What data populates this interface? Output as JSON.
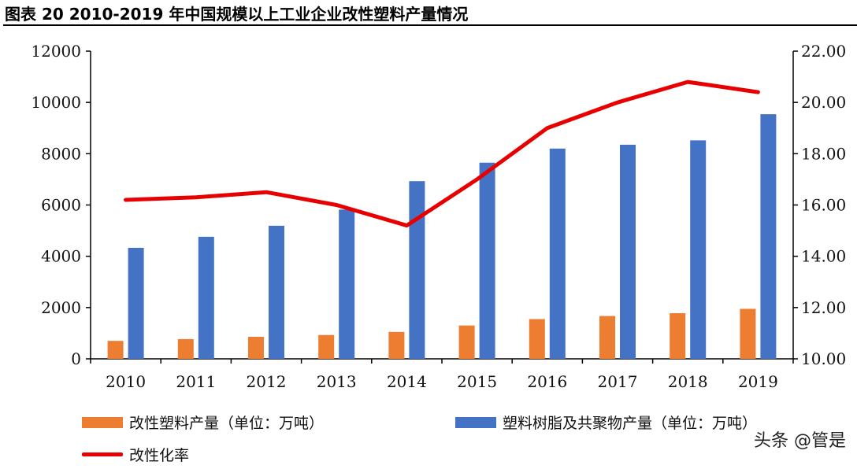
{
  "title": "图表 20 2010-2019 年中国规模以上工业企业改性塑料产量情况",
  "watermark": "头条 @管是",
  "colors": {
    "orange": "#ED7D31",
    "blue": "#4472C4",
    "red": "#E80000",
    "axis": "#000000"
  },
  "chart_data": {
    "type": "bar",
    "categories": [
      "2010",
      "2011",
      "2012",
      "2013",
      "2014",
      "2015",
      "2016",
      "2017",
      "2018",
      "2019"
    ],
    "series": [
      {
        "name": "改性塑料产量（单位：万吨）",
        "type": "bar",
        "axis": "left",
        "color": "#ED7D31",
        "values": [
          700,
          770,
          860,
          930,
          1050,
          1300,
          1550,
          1670,
          1780,
          1950
        ]
      },
      {
        "name": "塑料树脂及共聚物产量（单位：万吨）",
        "type": "bar",
        "axis": "left",
        "color": "#4472C4",
        "values": [
          4330,
          4760,
          5190,
          5820,
          6930,
          7650,
          8200,
          8350,
          8520,
          9540
        ]
      },
      {
        "name": "改性化率",
        "type": "line",
        "axis": "right",
        "color": "#E80000",
        "values": [
          16.2,
          16.3,
          16.5,
          16.0,
          15.2,
          17.0,
          19.0,
          20.0,
          20.8,
          20.4
        ]
      }
    ],
    "left_axis": {
      "min": 0,
      "max": 12000,
      "ticks": [
        "0",
        "2000",
        "4000",
        "6000",
        "8000",
        "10000",
        "12000"
      ]
    },
    "right_axis": {
      "min": 10,
      "max": 22,
      "ticks": [
        "10.00",
        "12.00",
        "14.00",
        "16.00",
        "18.00",
        "20.00",
        "22.00"
      ]
    },
    "legend": [
      {
        "label": "改性塑料产量（单位：万吨）",
        "kind": "bar",
        "color": "#ED7D31"
      },
      {
        "label": "塑料树脂及共聚物产量（单位：万吨）",
        "kind": "bar",
        "color": "#4472C4"
      },
      {
        "label": "改性化率",
        "kind": "line",
        "color": "#E80000"
      }
    ]
  }
}
